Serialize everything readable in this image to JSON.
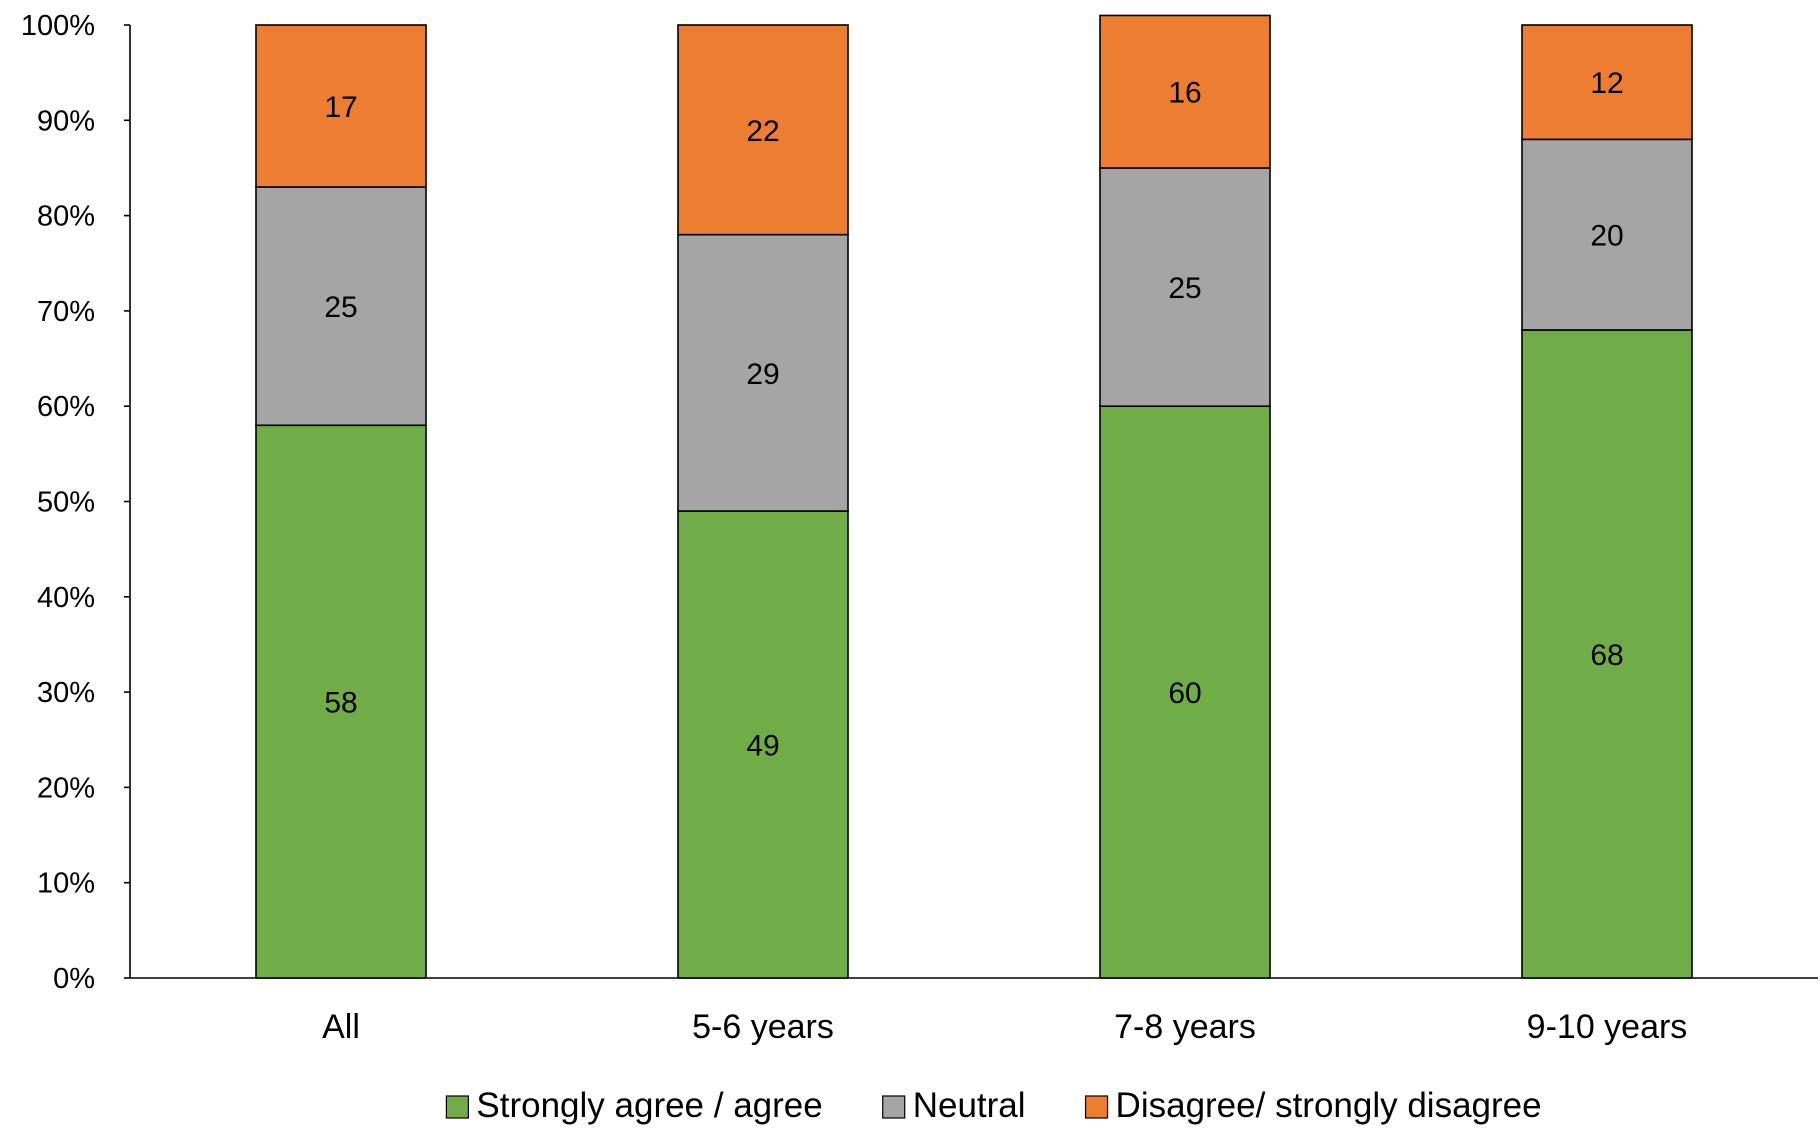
{
  "chart_data": {
    "type": "bar",
    "stacked": true,
    "categories": [
      "All",
      "5-6 years",
      "7-8 years",
      "9-10 years"
    ],
    "series": [
      {
        "name": "Strongly agree / agree",
        "values": [
          58,
          49,
          60,
          68
        ],
        "color": "#70AD47"
      },
      {
        "name": "Neutral",
        "values": [
          25,
          29,
          25,
          20
        ],
        "color": "#A5A5A5"
      },
      {
        "name": "Disagree/ strongly disagree",
        "values": [
          17,
          22,
          16,
          12
        ],
        "color": "#ED7D31"
      }
    ],
    "ylim": [
      0,
      100
    ],
    "yticks": [
      "0%",
      "10%",
      "20%",
      "30%",
      "40%",
      "50%",
      "60%",
      "70%",
      "80%",
      "90%",
      "100%"
    ],
    "grid": false,
    "legend_position": "bottom"
  }
}
